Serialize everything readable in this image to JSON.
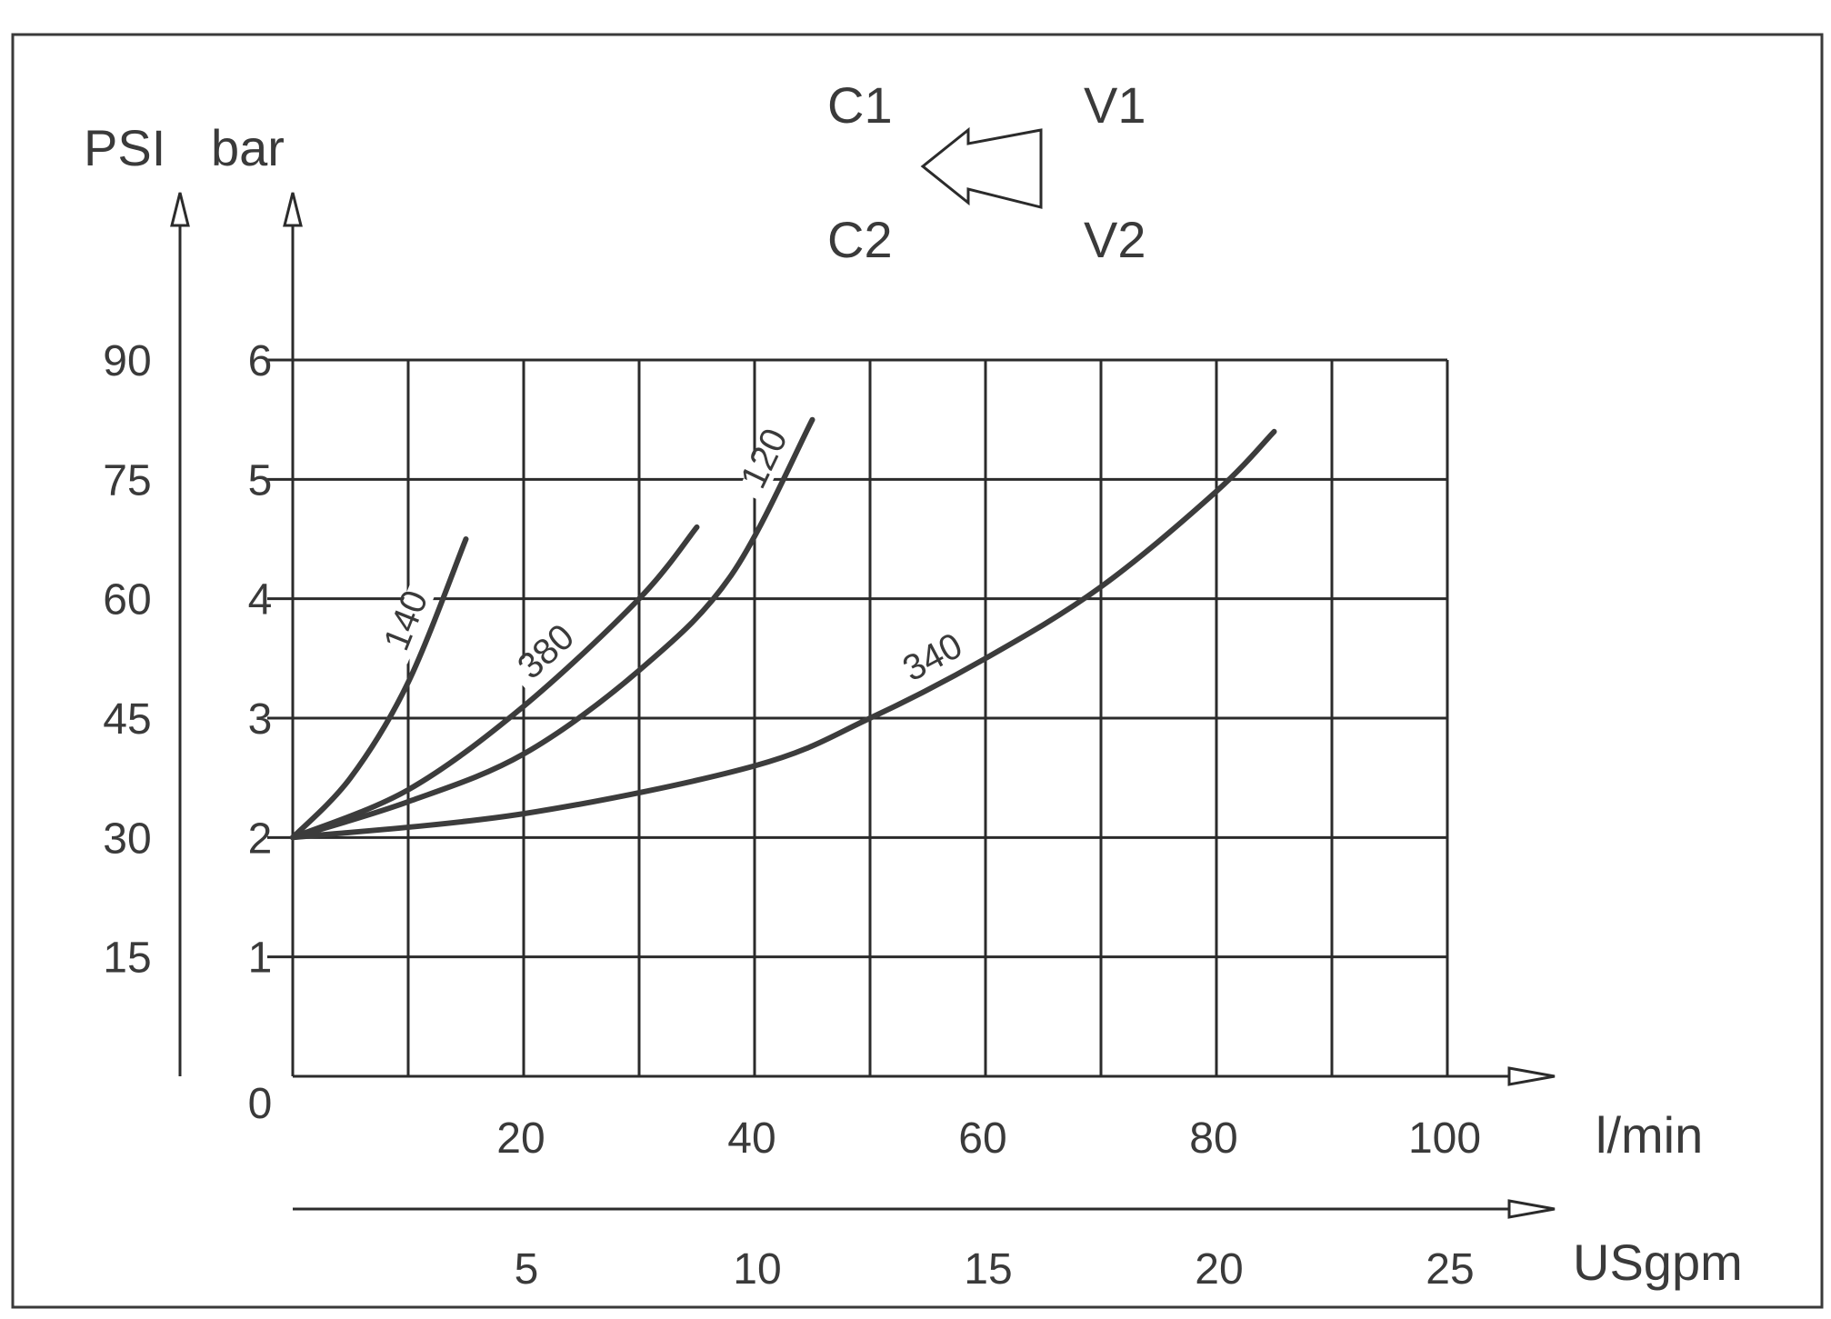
{
  "chart_data": {
    "type": "line",
    "x_primary": {
      "label": "l/min",
      "ticks": [
        20,
        40,
        60,
        80,
        100
      ],
      "range": [
        0,
        100
      ],
      "grid_step": 10
    },
    "x_secondary": {
      "label": "USgpm",
      "ticks": [
        5,
        10,
        15,
        20,
        25
      ]
    },
    "y_primary": {
      "label": "bar",
      "ticks": [
        0,
        1,
        2,
        3,
        4,
        5,
        6
      ],
      "range": [
        0,
        6
      ]
    },
    "y_secondary": {
      "label": "PSI",
      "ticks": [
        15,
        30,
        45,
        60,
        75,
        90
      ]
    },
    "grid": true,
    "flow_diagram": {
      "c1": "C1",
      "c2": "C2",
      "v1": "V1",
      "v2": "V2"
    },
    "series": [
      {
        "name": "140",
        "x": [
          0,
          5,
          10,
          15
        ],
        "y": [
          2.0,
          2.5,
          3.3,
          4.5
        ]
      },
      {
        "name": "380",
        "x": [
          0,
          10,
          20,
          30,
          35
        ],
        "y": [
          2.0,
          2.4,
          3.1,
          4.0,
          4.6
        ]
      },
      {
        "name": "120",
        "x": [
          0,
          10,
          20,
          30,
          38,
          45
        ],
        "y": [
          2.0,
          2.3,
          2.7,
          3.4,
          4.2,
          5.5
        ]
      },
      {
        "name": "340",
        "x": [
          0,
          20,
          40,
          50,
          60,
          70,
          80,
          85
        ],
        "y": [
          2.0,
          2.2,
          2.6,
          3.0,
          3.5,
          4.1,
          4.9,
          5.4
        ]
      }
    ]
  }
}
